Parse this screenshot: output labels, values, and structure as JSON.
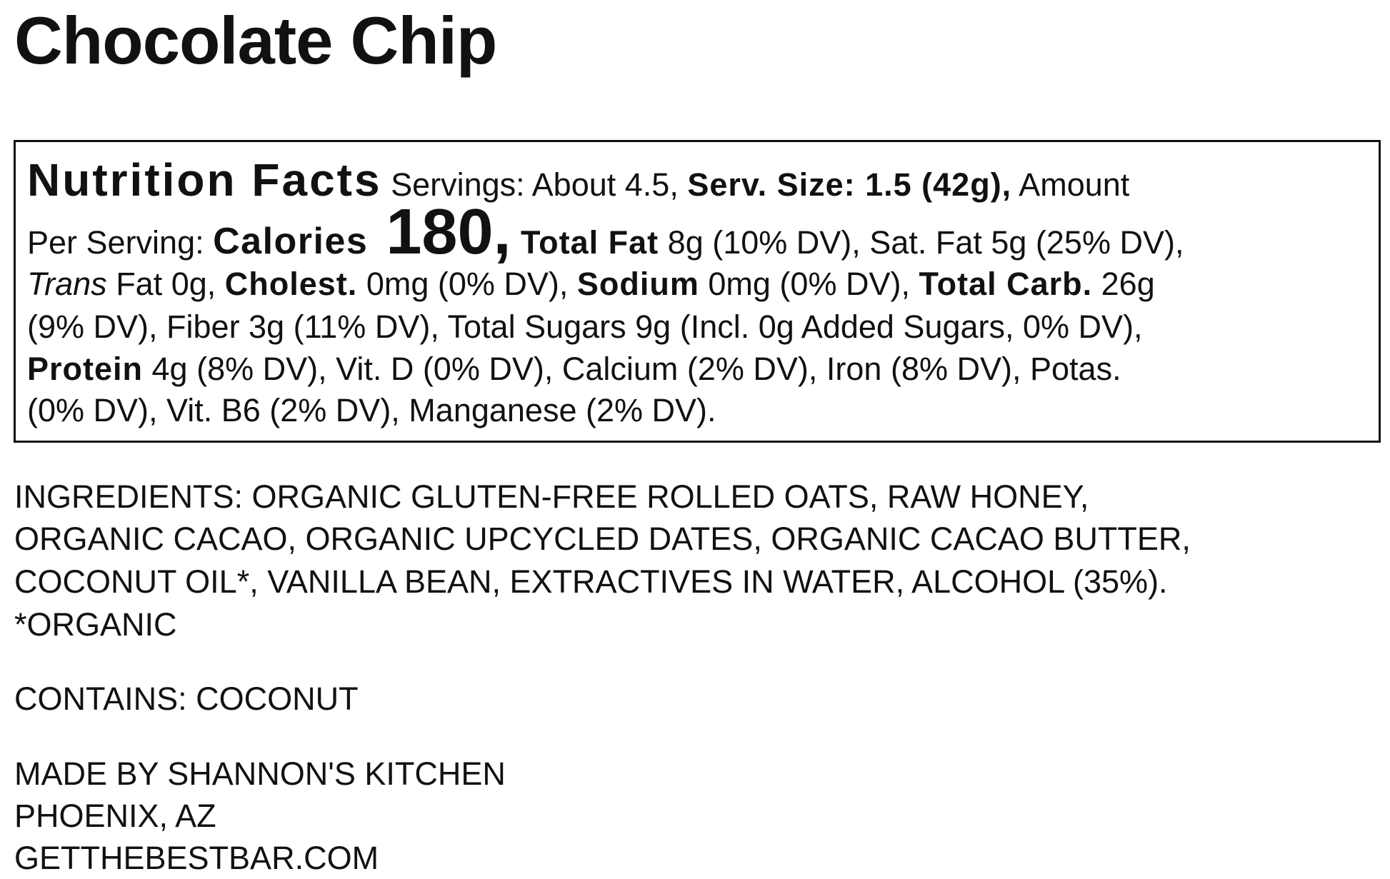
{
  "title": "Chocolate Chip",
  "nutrition": {
    "heading": "Nutrition Facts",
    "l1": {
      "a": " Servings: About 4.5, ",
      "b": "Serv. Size: 1.5 (42g),",
      "c": " Amount"
    },
    "l2": {
      "a": "Per Serving: ",
      "b": "Calories",
      "c": " 180,",
      "d": " Total Fat",
      "e": " 8g (10% DV), Sat. Fat 5g (25% DV),"
    },
    "l3": {
      "a": "Trans",
      "b": " Fat 0g, ",
      "c": "Cholest.",
      "d": " 0mg (0% DV), ",
      "e": "Sodium",
      "f": " 0mg (0% DV), ",
      "g": "Total Carb.",
      "h": " 26g"
    },
    "l4": "(9% DV), Fiber 3g (11% DV), Total Sugars 9g (Incl. 0g  Added Sugars, 0% DV),",
    "l5": {
      "a": "Protein",
      "b": " 4g (8% DV), Vit. D (0% DV), Calcium (2% DV), Iron (8% DV), Potas."
    },
    "l6": "(0% DV), Vit. B6 (2% DV), Manganese (2% DV)."
  },
  "ingredients": [
    "INGREDIENTS: ORGANIC GLUTEN-FREE ROLLED OATS, RAW HONEY,",
    "ORGANIC CACAO, ORGANIC UPCYCLED DATES, ORGANIC CACAO BUTTER,",
    "COCONUT OIL*, VANILLA BEAN, EXTRACTIVES IN WATER, ALCOHOL (35%).",
    "*ORGANIC"
  ],
  "contains": "CONTAINS: COCONUT",
  "maker": [
    "MADE BY SHANNON'S KITCHEN",
    "PHOENIX, AZ",
    "GETTHEBESTBAR.COM"
  ]
}
